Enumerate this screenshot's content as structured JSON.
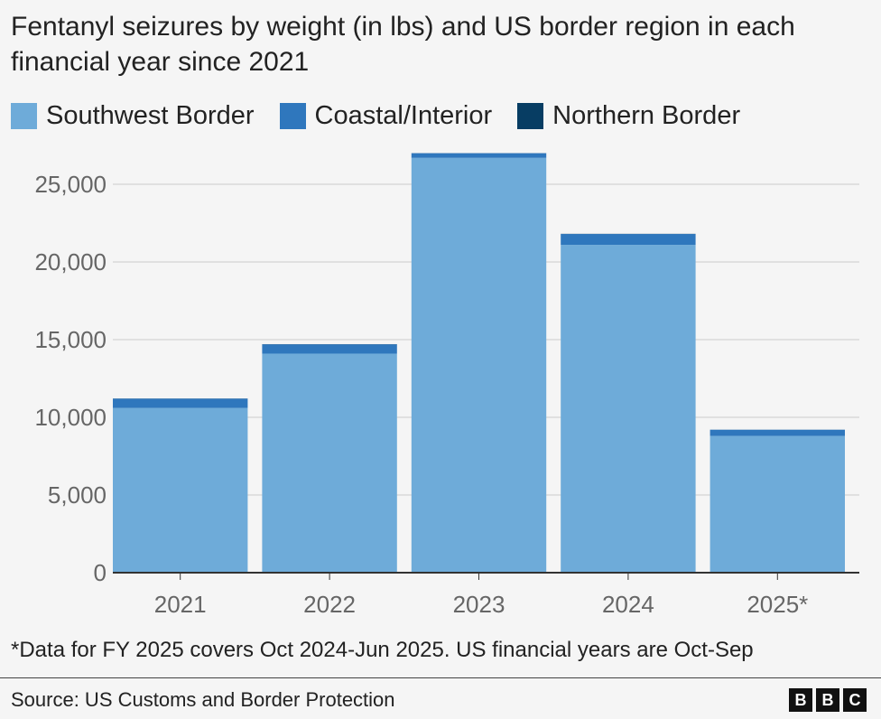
{
  "title": "Fentanyl seizures by weight (in lbs) and US border region in each financial year since 2021",
  "legend": [
    {
      "label": "Southwest Border",
      "color": "#6eabd9"
    },
    {
      "label": "Coastal/Interior",
      "color": "#2f77bd"
    },
    {
      "label": "Northern Border",
      "color": "#073d63"
    }
  ],
  "chart_data": {
    "type": "bar",
    "stacked": true,
    "categories": [
      "2021",
      "2022",
      "2023",
      "2024",
      "2025*"
    ],
    "series": [
      {
        "name": "Southwest Border",
        "color": "#6eabd9",
        "values": [
          10600,
          14100,
          26700,
          21100,
          8800
        ]
      },
      {
        "name": "Coastal/Interior",
        "color": "#2f77bd",
        "values": [
          600,
          600,
          300,
          700,
          400
        ]
      },
      {
        "name": "Northern Border",
        "color": "#073d63",
        "values": [
          10,
          10,
          5,
          10,
          5
        ]
      }
    ],
    "yticks": [
      0,
      5000,
      10000,
      15000,
      20000,
      25000
    ],
    "ytick_labels": [
      "0",
      "5,000",
      "10,000",
      "15,000",
      "20,000",
      "25,000"
    ],
    "ylim": [
      0,
      27500
    ],
    "grid": true,
    "legend_position": "top-left"
  },
  "footnote": "*Data for FY 2025 covers Oct 2024-Jun 2025. US financial years are Oct-Sep",
  "source": "Source: US Customs and Border Protection",
  "logo": [
    "B",
    "B",
    "C"
  ]
}
